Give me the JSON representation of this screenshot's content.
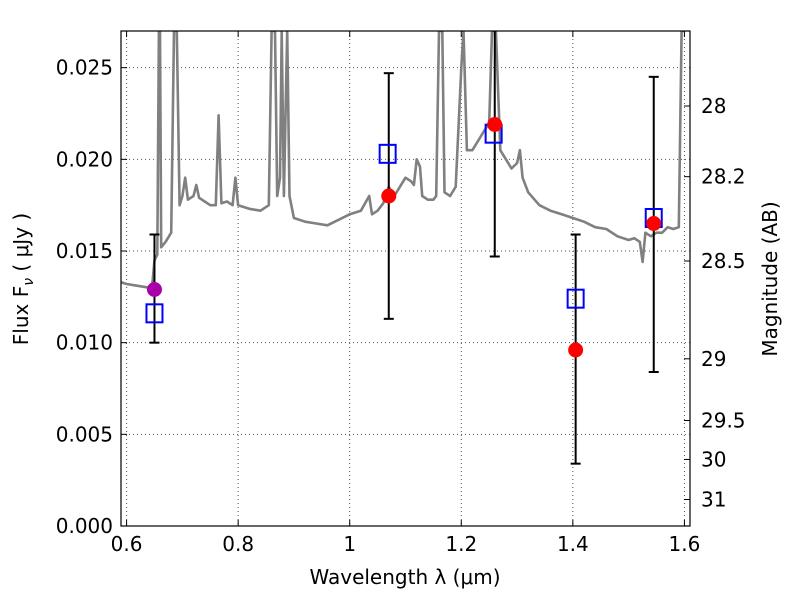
{
  "chart_data": {
    "type": "scatter",
    "xlabel": "Wavelength  λ (μm)",
    "ylabel": "Flux  F",
    "ylabel_sub": "ν",
    "ylabel_unit": "  ( μJy )",
    "y2label": "Magnitude (AB)",
    "xlim": [
      0.59,
      1.61
    ],
    "ylim": [
      0.0,
      0.027
    ],
    "grid": true,
    "x_ticks": [
      {
        "value": 0.6,
        "label": "0.6"
      },
      {
        "value": 0.8,
        "label": "0.8"
      },
      {
        "value": 1.0,
        "label": "1"
      },
      {
        "value": 1.2,
        "label": "1.2"
      },
      {
        "value": 1.4,
        "label": "1.4"
      },
      {
        "value": 1.6,
        "label": "1.6"
      }
    ],
    "y_ticks": [
      {
        "value": 0.0,
        "label": "0.000"
      },
      {
        "value": 0.005,
        "label": "0.005"
      },
      {
        "value": 0.01,
        "label": "0.010"
      },
      {
        "value": 0.015,
        "label": "0.015"
      },
      {
        "value": 0.02,
        "label": "0.020"
      },
      {
        "value": 0.025,
        "label": "0.025"
      }
    ],
    "y2_ticks": [
      {
        "mag": 28,
        "label": "28"
      },
      {
        "mag": 28.2,
        "label": "28.2"
      },
      {
        "mag": 28.5,
        "label": "28.5"
      },
      {
        "mag": 29,
        "label": "29"
      },
      {
        "mag": 29.5,
        "label": "29.5"
      },
      {
        "mag": 30,
        "label": "30"
      },
      {
        "mag": 31,
        "label": "31"
      }
    ],
    "colors": {
      "model": "#808080",
      "observed": "#ff0000",
      "observed_alt": "#aa00aa",
      "model_band": "#0000ff",
      "errorbar": "#000000",
      "grid": "#555555"
    },
    "series": [
      {
        "type": "line",
        "values": [
          [
            0.59,
            0.0133
          ],
          [
            0.6,
            0.0132
          ],
          [
            0.62,
            0.0131
          ],
          [
            0.64,
            0.013
          ],
          [
            0.645,
            0.0128
          ],
          [
            0.65,
            0.0145
          ],
          [
            0.655,
            0.0148
          ],
          [
            0.658,
            0.027
          ],
          [
            0.66,
            0.027
          ],
          [
            0.662,
            0.0152
          ],
          [
            0.67,
            0.0155
          ],
          [
            0.68,
            0.016
          ],
          [
            0.685,
            0.027
          ],
          [
            0.69,
            0.027
          ],
          [
            0.695,
            0.0175
          ],
          [
            0.7,
            0.018
          ],
          [
            0.705,
            0.019
          ],
          [
            0.71,
            0.0178
          ],
          [
            0.72,
            0.018
          ],
          [
            0.725,
            0.0186
          ],
          [
            0.73,
            0.0179
          ],
          [
            0.74,
            0.0177
          ],
          [
            0.75,
            0.0175
          ],
          [
            0.76,
            0.0175
          ],
          [
            0.765,
            0.0224
          ],
          [
            0.77,
            0.0176
          ],
          [
            0.78,
            0.0177
          ],
          [
            0.79,
            0.0175
          ],
          [
            0.795,
            0.019
          ],
          [
            0.8,
            0.0175
          ],
          [
            0.81,
            0.0174
          ],
          [
            0.82,
            0.0173
          ],
          [
            0.84,
            0.0172
          ],
          [
            0.855,
            0.0175
          ],
          [
            0.86,
            0.027
          ],
          [
            0.866,
            0.027
          ],
          [
            0.87,
            0.018
          ],
          [
            0.875,
            0.019
          ],
          [
            0.878,
            0.027
          ],
          [
            0.882,
            0.018
          ],
          [
            0.888,
            0.027
          ],
          [
            0.892,
            0.018
          ],
          [
            0.9,
            0.0168
          ],
          [
            0.92,
            0.0166
          ],
          [
            0.94,
            0.0165
          ],
          [
            0.96,
            0.0164
          ],
          [
            0.98,
            0.0167
          ],
          [
            1.0,
            0.017
          ],
          [
            1.02,
            0.0172
          ],
          [
            1.035,
            0.018
          ],
          [
            1.04,
            0.017
          ],
          [
            1.05,
            0.0172
          ],
          [
            1.06,
            0.0176
          ],
          [
            1.07,
            0.0185
          ],
          [
            1.08,
            0.018
          ],
          [
            1.09,
            0.0185
          ],
          [
            1.1,
            0.019
          ],
          [
            1.11,
            0.0188
          ],
          [
            1.115,
            0.0186
          ],
          [
            1.12,
            0.02
          ],
          [
            1.126,
            0.0196
          ],
          [
            1.13,
            0.018
          ],
          [
            1.14,
            0.0178
          ],
          [
            1.15,
            0.0178
          ],
          [
            1.155,
            0.018
          ],
          [
            1.16,
            0.027
          ],
          [
            1.166,
            0.027
          ],
          [
            1.17,
            0.0182
          ],
          [
            1.18,
            0.018
          ],
          [
            1.19,
            0.0185
          ],
          [
            1.2,
            0.025
          ],
          [
            1.204,
            0.027
          ],
          [
            1.21,
            0.0205
          ],
          [
            1.22,
            0.0205
          ],
          [
            1.23,
            0.021
          ],
          [
            1.24,
            0.0215
          ],
          [
            1.25,
            0.022
          ],
          [
            1.255,
            0.027
          ],
          [
            1.262,
            0.027
          ],
          [
            1.27,
            0.0205
          ],
          [
            1.28,
            0.02
          ],
          [
            1.29,
            0.0195
          ],
          [
            1.3,
            0.0198
          ],
          [
            1.305,
            0.0205
          ],
          [
            1.31,
            0.019
          ],
          [
            1.32,
            0.0182
          ],
          [
            1.34,
            0.0175
          ],
          [
            1.36,
            0.0172
          ],
          [
            1.38,
            0.017
          ],
          [
            1.4,
            0.0168
          ],
          [
            1.42,
            0.0166
          ],
          [
            1.44,
            0.0163
          ],
          [
            1.46,
            0.0162
          ],
          [
            1.48,
            0.0158
          ],
          [
            1.5,
            0.0156
          ],
          [
            1.51,
            0.0157
          ],
          [
            1.52,
            0.0155
          ],
          [
            1.525,
            0.0144
          ],
          [
            1.53,
            0.016
          ],
          [
            1.54,
            0.0158
          ],
          [
            1.55,
            0.016
          ],
          [
            1.56,
            0.016
          ],
          [
            1.57,
            0.0163
          ],
          [
            1.58,
            0.0162
          ],
          [
            1.59,
            0.0163
          ],
          [
            1.595,
            0.027
          ],
          [
            1.6,
            0.027
          ]
        ]
      },
      {
        "type": "observed",
        "points": [
          {
            "x": 0.65,
            "y": 0.0129,
            "err_low": 0.01,
            "err_high": 0.0159,
            "alt": true
          },
          {
            "x": 1.07,
            "y": 0.018,
            "err_low": 0.0113,
            "err_high": 0.0247,
            "alt": false
          },
          {
            "x": 1.26,
            "y": 0.0219,
            "err_low": 0.0147,
            "err_high": 0.027,
            "alt": false
          },
          {
            "x": 1.405,
            "y": 0.0096,
            "err_low": 0.0034,
            "err_high": 0.0159,
            "alt": false
          },
          {
            "x": 1.545,
            "y": 0.0165,
            "err_low": 0.0084,
            "err_high": 0.0245,
            "alt": false
          }
        ]
      },
      {
        "type": "model_band",
        "points": [
          {
            "x": 0.65,
            "y": 0.0116
          },
          {
            "x": 1.068,
            "y": 0.0203
          },
          {
            "x": 1.258,
            "y": 0.0214
          },
          {
            "x": 1.405,
            "y": 0.0124
          },
          {
            "x": 1.545,
            "y": 0.0168
          }
        ]
      }
    ]
  }
}
